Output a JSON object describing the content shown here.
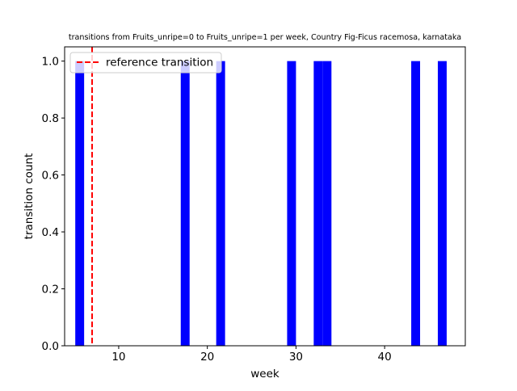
{
  "chart_data": {
    "type": "bar",
    "title": "transitions from Fruits_unripe=0 to Fruits_unripe=1 per week, Country Fig-Ficus racemosa, karnataka",
    "xlabel": "week",
    "ylabel": "transition count",
    "xlim": [
      3.9,
      49.1
    ],
    "ylim": [
      0,
      1.05
    ],
    "x_ticks": [
      10,
      20,
      30,
      40
    ],
    "y_ticks": [
      0.0,
      0.2,
      0.4,
      0.6,
      0.8,
      1.0
    ],
    "x_tick_labels": [
      "10",
      "20",
      "30",
      "40"
    ],
    "y_tick_labels": [
      "0.0",
      "0.2",
      "0.4",
      "0.6",
      "0.8",
      "1.0"
    ],
    "bar_width_weeks": 1,
    "series": [
      {
        "color": "#0000ff",
        "x": [
          5.6,
          17.5,
          21.5,
          29.5,
          32.5,
          33.5,
          43.5,
          46.5
        ],
        "values": [
          1,
          1,
          1,
          1,
          1,
          1,
          1,
          1
        ]
      }
    ],
    "reference_lines": [
      {
        "name": "reference transition",
        "x": 7,
        "color": "#ff0000",
        "style": "dashed"
      }
    ],
    "legend": {
      "position": "top-left",
      "entries": [
        "reference transition"
      ]
    },
    "grid": false
  }
}
